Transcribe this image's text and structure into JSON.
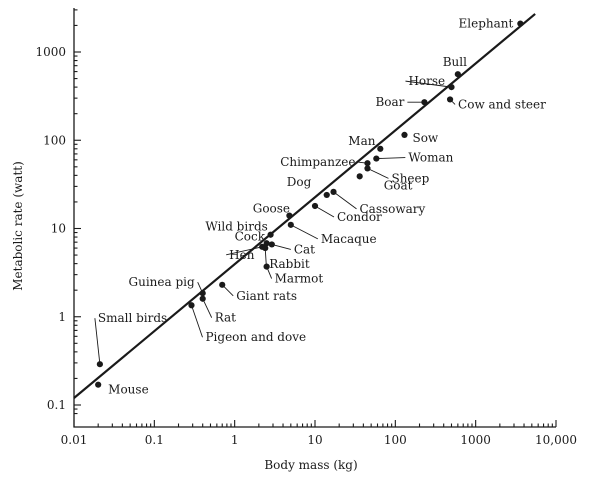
{
  "chart_data": {
    "type": "scatter",
    "title": "",
    "xlabel": "Body mass (kg)",
    "ylabel": "Metabolic rate (watt)",
    "x_scale": "log",
    "y_scale": "log",
    "xlim": [
      0.01,
      10000
    ],
    "ylim": [
      0.08,
      3000
    ],
    "grid": false,
    "x_ticks": [
      {
        "value": 0.01,
        "label": "0.01"
      },
      {
        "value": 0.1,
        "label": "0.1"
      },
      {
        "value": 1,
        "label": "1"
      },
      {
        "value": 10,
        "label": "10"
      },
      {
        "value": 100,
        "label": "100"
      },
      {
        "value": 1000,
        "label": "1000"
      },
      {
        "value": 10000,
        "label": "10,000"
      }
    ],
    "y_ticks": [
      {
        "value": 0.1,
        "label": "0.1"
      },
      {
        "value": 1,
        "label": "1"
      },
      {
        "value": 10,
        "label": "10"
      },
      {
        "value": 100,
        "label": "100"
      },
      {
        "value": 1000,
        "label": "1000"
      }
    ],
    "fit_line": {
      "x": [
        0.01,
        5500
      ],
      "y": [
        0.12,
        2700
      ]
    },
    "points": [
      {
        "label": "Elephant",
        "x": 3600,
        "y": 2100
      },
      {
        "label": "Bull",
        "x": 600,
        "y": 560
      },
      {
        "label": "Horse",
        "x": 500,
        "y": 400
      },
      {
        "label": "Boar",
        "x": 230,
        "y": 270
      },
      {
        "label": "Cow and steer",
        "x": 480,
        "y": 290
      },
      {
        "label": "Man",
        "x": 65,
        "y": 80
      },
      {
        "label": "Sow",
        "x": 130,
        "y": 115
      },
      {
        "label": "Chimpanzee",
        "x": 45,
        "y": 55
      },
      {
        "label": "Woman",
        "x": 58,
        "y": 62
      },
      {
        "label": "Sheep",
        "x": 45,
        "y": 48
      },
      {
        "label": "Goat",
        "x": 36,
        "y": 39
      },
      {
        "label": "Dog",
        "x": 14,
        "y": 24
      },
      {
        "label": "Cassowary",
        "x": 17,
        "y": 26
      },
      {
        "label": "Condor",
        "x": 10,
        "y": 18
      },
      {
        "label": "Goose",
        "x": 4.8,
        "y": 14
      },
      {
        "label": "Wild birds",
        "x": 2.8,
        "y": 8.5
      },
      {
        "label": "Macaque",
        "x": 5,
        "y": 11
      },
      {
        "label": "Cock",
        "x": 2.5,
        "y": 6.8
      },
      {
        "label": "Hen",
        "x": 2.2,
        "y": 6.2
      },
      {
        "label": "Cat",
        "x": 2.9,
        "y": 6.6
      },
      {
        "label": "Rabbit",
        "x": 2.4,
        "y": 6.0
      },
      {
        "label": "Marmot",
        "x": 2.5,
        "y": 3.7
      },
      {
        "label": "Guinea pig",
        "x": 0.4,
        "y": 1.85
      },
      {
        "label": "Giant rats",
        "x": 0.7,
        "y": 2.3
      },
      {
        "label": "Rat",
        "x": 0.4,
        "y": 1.6
      },
      {
        "label": "Pigeon and dove",
        "x": 0.29,
        "y": 1.35
      },
      {
        "label": "Small birds",
        "x": 0.021,
        "y": 0.29
      },
      {
        "label": "Mouse",
        "x": 0.02,
        "y": 0.17
      }
    ]
  }
}
